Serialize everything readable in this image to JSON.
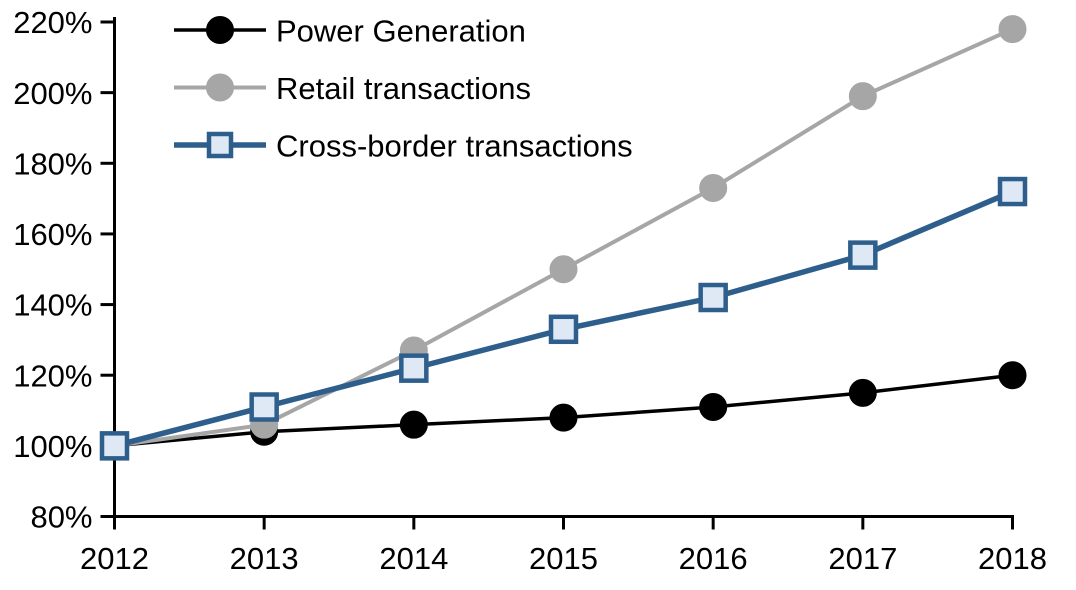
{
  "chart_data": {
    "type": "line",
    "title": "",
    "xlabel": "",
    "ylabel": "",
    "grid": false,
    "legend_position": "top-left",
    "x": [
      2012,
      2013,
      2014,
      2015,
      2016,
      2017,
      2018
    ],
    "xtick_labels": [
      "2012",
      "2013",
      "2014",
      "2015",
      "2016",
      "2017",
      "2018"
    ],
    "ylim": [
      80,
      220
    ],
    "ytick_step": 20,
    "ytick_labels": [
      "80%",
      "100%",
      "120%",
      "140%",
      "160%",
      "180%",
      "200%",
      "220%"
    ],
    "series": [
      {
        "name": "Power Generation",
        "values": [
          100,
          104,
          106,
          108,
          111,
          115,
          120
        ],
        "color": "#000000",
        "marker": "circle",
        "marker_fill": "#000000",
        "marker_stroke": "#000000",
        "line_width": 3.5
      },
      {
        "name": "Retail transactions",
        "values": [
          100,
          106,
          127,
          150,
          173,
          199,
          218
        ],
        "color": "#A6A6A6",
        "marker": "circle",
        "marker_fill": "#A6A6A6",
        "marker_stroke": "#A6A6A6",
        "line_width": 4
      },
      {
        "name": "Cross-border transactions",
        "values": [
          100,
          111,
          122,
          133,
          142,
          154,
          172
        ],
        "color": "#2E5F8C",
        "marker": "square",
        "marker_fill": "#DEE9F5",
        "marker_stroke": "#2E5F8C",
        "line_width": 5.5
      }
    ],
    "colors": {
      "axis": "#000000",
      "background": "#FFFFFF"
    }
  }
}
